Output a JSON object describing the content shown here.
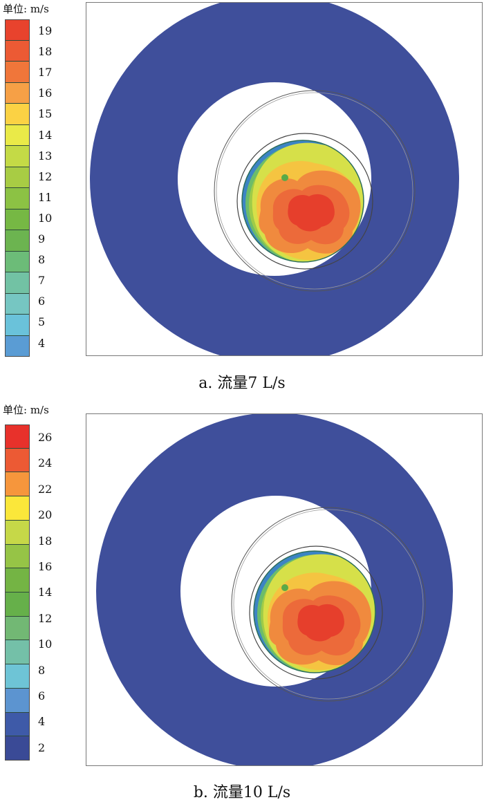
{
  "panels": [
    {
      "id": "a",
      "unit_label": "单位: m/s",
      "caption": "a. 流量7 L/s",
      "legend": {
        "ticks": [
          "19",
          "18",
          "17",
          "16",
          "15",
          "14",
          "13",
          "12",
          "11",
          "10",
          "9",
          "8",
          "7",
          "6",
          "5",
          "4"
        ],
        "colors": [
          "#e8432d",
          "#ec5a34",
          "#f0763a",
          "#f6a046",
          "#fbd244",
          "#eaea48",
          "#c4da46",
          "#a8cc44",
          "#8cc244",
          "#76b844",
          "#6cb450",
          "#6cbc78",
          "#72c2a4",
          "#76c6c2",
          "#6ac2da",
          "#5a9cd4"
        ]
      }
    },
    {
      "id": "b",
      "unit_label": "单位: m/s",
      "caption": "b. 流量10 L/s",
      "legend": {
        "ticks": [
          "26",
          "24",
          "22",
          "20",
          "18",
          "16",
          "14",
          "12",
          "10",
          "8",
          "6",
          "4",
          "2"
        ],
        "colors": [
          "#e8312b",
          "#ec5a34",
          "#f6963c",
          "#fbe73a",
          "#c6d848",
          "#96c446",
          "#74b444",
          "#66b04a",
          "#72b874",
          "#74c0a8",
          "#6ec4d6",
          "#5c94d0",
          "#3e5aa8",
          "#3a4a96"
        ]
      }
    }
  ],
  "colors": {
    "outer_ring": "#3f4f9b",
    "thin_circle": "#555555"
  }
}
